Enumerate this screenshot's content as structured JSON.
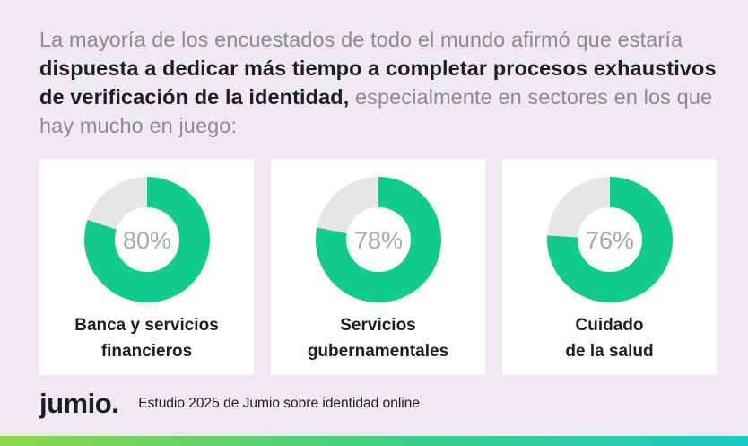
{
  "headline": {
    "part1": "La mayoría de los encuestados de todo el mundo afirmó que estaría ",
    "part2_bold": "dispuesta a dedicar más tiempo a completar procesos exhaustivos de verificación de la identidad,",
    "part3": " especialmente en sectores en los que hay mucho en juego:"
  },
  "colors": {
    "accent": "#12cc8c",
    "track": "#e6e6e8",
    "card_bg": "#ffffff",
    "page_bg": "#eeeaf0"
  },
  "chart_data": {
    "type": "pie",
    "variant": "donut",
    "charts": [
      {
        "label": "Banca y servicios\nfinancieros",
        "value": 80,
        "value_label": "80%"
      },
      {
        "label": "Servicios\ngubernamentales",
        "value": 78,
        "value_label": "78%"
      },
      {
        "label": "Cuidado\nde la salud",
        "value": 76,
        "value_label": "76%"
      }
    ]
  },
  "footer": {
    "logo": "jumio",
    "logo_dot": ".",
    "source": "Estudio 2025 de Jumio sobre identidad online"
  }
}
